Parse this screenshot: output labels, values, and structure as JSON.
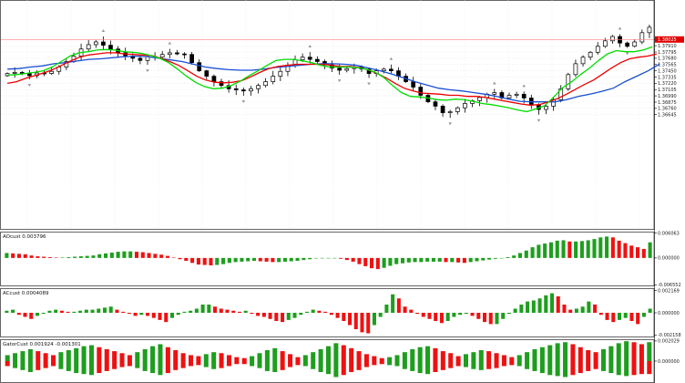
{
  "chart_data": [
    {
      "type": "candlestick",
      "panel": "main",
      "title": "",
      "xlabel": "",
      "ylabel": "",
      "ylim": [
        1.3453,
        1.3875
      ],
      "grid": true,
      "y_ticks": [
        "1.38025",
        "1.37910",
        "1.37795",
        "1.37680",
        "1.37565",
        "1.37450",
        "1.37335",
        "1.37220",
        "1.37105",
        "1.36990",
        "1.36875",
        "1.36760",
        "1.36645"
      ],
      "y_tick_values": [
        1.38025,
        1.3791,
        1.37795,
        1.3768,
        1.37565,
        1.3745,
        1.37335,
        1.3722,
        1.37105,
        1.3699,
        1.36875,
        1.3676,
        1.36645
      ],
      "current_price": "1.38025",
      "current_price_value": 1.38025,
      "colors": {
        "bull": "#ffffff",
        "bear": "#000000",
        "fast": "#00dd00",
        "mid": "#ee0000",
        "slow": "#1a4fd6",
        "fractal": "#9a9a9a",
        "price_line": "#ff8080"
      },
      "close": [
        1.374,
        1.3742,
        1.374,
        1.3736,
        1.3741,
        1.374,
        1.3744,
        1.3752,
        1.3762,
        1.3772,
        1.3785,
        1.3793,
        1.3798,
        1.3792,
        1.3785,
        1.3778,
        1.3772,
        1.3768,
        1.3764,
        1.3771,
        1.377,
        1.3775,
        1.3778,
        1.3776,
        1.3775,
        1.376,
        1.3745,
        1.3735,
        1.3725,
        1.3718,
        1.3712,
        1.371,
        1.3708,
        1.3712,
        1.3718,
        1.3725,
        1.3735,
        1.3744,
        1.3755,
        1.3765,
        1.377,
        1.3766,
        1.3762,
        1.3756,
        1.375,
        1.3746,
        1.3749,
        1.3752,
        1.3748,
        1.374,
        1.3745,
        1.3748,
        1.3745,
        1.3735,
        1.3725,
        1.3715,
        1.37,
        1.3688,
        1.368,
        1.3668,
        1.367,
        1.3677,
        1.3685,
        1.369,
        1.3696,
        1.3702,
        1.3705,
        1.3695,
        1.37,
        1.3702,
        1.3695,
        1.3682,
        1.3674,
        1.368,
        1.3692,
        1.3712,
        1.3738,
        1.3758,
        1.377,
        1.3779,
        1.379,
        1.38,
        1.3808,
        1.3796,
        1.379,
        1.3798,
        1.3815,
        1.3825
      ],
      "fast_ma": [
        1.3737,
        1.3738,
        1.374,
        1.3742,
        1.3745,
        1.3752,
        1.3762,
        1.3772,
        1.3778,
        1.378,
        1.3783,
        1.3784,
        1.3783,
        1.378,
        1.3779,
        1.3777,
        1.3773,
        1.3768,
        1.376,
        1.3748,
        1.3735,
        1.3724,
        1.3716,
        1.3712,
        1.3713,
        1.3718,
        1.3726,
        1.3736,
        1.3745,
        1.3755,
        1.3764,
        1.3766,
        1.3766,
        1.3763,
        1.376,
        1.3755,
        1.3752,
        1.3752,
        1.3752,
        1.3751,
        1.3748,
        1.3743,
        1.3733,
        1.3718,
        1.3705,
        1.3698,
        1.3697,
        1.3695,
        1.3692,
        1.3691,
        1.3693,
        1.3692,
        1.3689,
        1.3685,
        1.3683,
        1.368,
        1.3677,
        1.3673,
        1.367,
        1.3675,
        1.3681,
        1.3697,
        1.3714,
        1.3725,
        1.3738,
        1.375,
        1.3764,
        1.3776,
        1.3782,
        1.378,
        1.378,
        1.3783,
        1.3789
      ],
      "mid_ma": [
        1.3722,
        1.3725,
        1.3731,
        1.3736,
        1.3741,
        1.3747,
        1.3755,
        1.3763,
        1.377,
        1.3774,
        1.3776,
        1.3778,
        1.3778,
        1.3776,
        1.3775,
        1.3774,
        1.3773,
        1.3768,
        1.3762,
        1.3755,
        1.3745,
        1.3735,
        1.3728,
        1.3724,
        1.3723,
        1.3724,
        1.3727,
        1.3734,
        1.3742,
        1.3749,
        1.3753,
        1.3755,
        1.3757,
        1.3757,
        1.3757,
        1.3757,
        1.3755,
        1.3753,
        1.3753,
        1.3751,
        1.3747,
        1.374,
        1.3732,
        1.3722,
        1.3713,
        1.3708,
        1.3704,
        1.3703,
        1.3702,
        1.37,
        1.37,
        1.3698,
        1.3698,
        1.3696,
        1.3693,
        1.369,
        1.3687,
        1.3684,
        1.3682,
        1.3683,
        1.3688,
        1.3694,
        1.3702,
        1.3711,
        1.372,
        1.3728,
        1.3739,
        1.375,
        1.376,
        1.3767,
        1.377,
        1.3772,
        1.3776
      ],
      "slow_ma": [
        1.3748,
        1.3749,
        1.3752,
        1.3754,
        1.3758,
        1.376,
        1.3763,
        1.3766,
        1.3767,
        1.3769,
        1.3771,
        1.3772,
        1.3771,
        1.3768,
        1.3765,
        1.3762,
        1.3757,
        1.3752,
        1.3749,
        1.3747,
        1.3746,
        1.3746,
        1.3748,
        1.3751,
        1.3753,
        1.3755,
        1.3757,
        1.3758,
        1.3758,
        1.3757,
        1.3755,
        1.375,
        1.3745,
        1.3739,
        1.3732,
        1.3725,
        1.3719,
        1.3713,
        1.371,
        1.3708,
        1.3705,
        1.3702,
        1.3698,
        1.3693,
        1.3689,
        1.3688,
        1.3688,
        1.3688,
        1.3692,
        1.3698,
        1.3702,
        1.3707,
        1.3713,
        1.3725,
        1.3735,
        1.3745,
        1.3758
      ]
    },
    {
      "type": "histogram",
      "panel": "AOcust",
      "label": "AOcust 0.003796",
      "y_ticks": [
        "0.006063",
        "0.000000",
        "-0.006552"
      ],
      "y_tick_values": [
        0.006063,
        0,
        -0.006552
      ],
      "ylim": [
        -0.0069,
        0.0064
      ],
      "colors": {
        "up": "#1e9e1e",
        "down": "#ee1111"
      },
      "values": [
        0.0012,
        0.0011,
        0.001,
        0.0009,
        0.0006,
        0.0004,
        0.0003,
        0.0002,
        0.0001,
        0.0001,
        0.0002,
        0.0003,
        0.0004,
        0.0005,
        0.0006,
        0.0009,
        0.0011,
        0.0013,
        0.0015,
        0.0016,
        0.0016,
        0.0015,
        0.0014,
        0.0012,
        0.001,
        0.0008,
        0.0005,
        0.0001,
        -0.0003,
        -0.0007,
        -0.0012,
        -0.0016,
        -0.0017,
        -0.0018,
        -0.0017,
        -0.0015,
        -0.0012,
        -0.001,
        -0.0009,
        -0.0008,
        -0.0007,
        -0.0008,
        -0.0009,
        -0.001,
        -0.001,
        -0.0009,
        -0.0008,
        -0.0007,
        -0.0005,
        -0.0003,
        -0.0001,
        -0.0001,
        -0.0001,
        -0.0001,
        -0.0002,
        -0.0005,
        -0.0009,
        -0.0015,
        -0.002,
        -0.0025,
        -0.0027,
        -0.0024,
        -0.0019,
        -0.0015,
        -0.0013,
        -0.0011,
        -0.001,
        -0.001,
        -0.0009,
        -0.0009,
        -0.0009,
        -0.001,
        -0.001,
        -0.0011,
        -0.0012,
        -0.001,
        -0.0008,
        -0.0006,
        -0.0004,
        -0.0002,
        -0.0001,
        0.0002,
        0.0006,
        0.0012,
        0.0018,
        0.0026,
        0.0032,
        0.0035,
        0.0038,
        0.0042,
        0.0043,
        0.004,
        0.004,
        0.0041,
        0.0043,
        0.0046,
        0.005,
        0.0052,
        0.005,
        0.0042,
        0.0036,
        0.003,
        0.0026,
        0.0022,
        0.0038
      ]
    },
    {
      "type": "histogram",
      "panel": "ACcust",
      "label": "ACcust 0.0004089",
      "y_ticks": [
        "0.002169",
        "0.000000",
        "-0.002158"
      ],
      "y_tick_values": [
        0.002169,
        0,
        -0.002158
      ],
      "ylim": [
        -0.0024,
        0.0024
      ],
      "colors": {
        "up": "#1e9e1e",
        "down": "#ee1111"
      },
      "values": [
        0.0002,
        0.0003,
        -0.0002,
        -0.0004,
        -0.0006,
        -0.0003,
        -0.0001,
        0.0002,
        0.0003,
        0.0002,
        0.0001,
        0.0001,
        0.0002,
        0.0003,
        0.0003,
        0.0004,
        0.0005,
        0.0006,
        0.0003,
        0.0001,
        -0.0001,
        -0.0003,
        -0.0002,
        -0.0003,
        -0.0005,
        -0.0007,
        -0.0009,
        -0.0005,
        -0.0002,
        0.0001,
        0.0002,
        0.0004,
        0.0008,
        0.0008,
        0.0006,
        0.0004,
        0.0003,
        0.0002,
        0.0001,
        0.0002,
        -0.0001,
        -0.0003,
        -0.0004,
        -0.0006,
        -0.0008,
        -0.0009,
        -0.0007,
        -0.0005,
        -0.0002,
        0.0001,
        0.0003,
        0.0002,
        0.0001,
        -0.0002,
        -0.0005,
        -0.0008,
        -0.0012,
        -0.0016,
        -0.0019,
        -0.002,
        -0.0012,
        -0.0004,
        0.0008,
        0.0018,
        0.0014,
        0.0006,
        0.0003,
        -0.0001,
        -0.0004,
        -0.0006,
        -0.0008,
        -0.001,
        -0.0008,
        -0.0004,
        -0.0002,
        -0.0001,
        -0.0003,
        -0.0006,
        -0.0009,
        -0.0011,
        -0.0011,
        -0.0006,
        -0.0001,
        0.0004,
        0.0008,
        0.0011,
        0.0012,
        0.0014,
        0.0017,
        0.0019,
        0.0016,
        0.0008,
        0.0003,
        0.0004,
        0.0006,
        0.0011,
        0.0008,
        -0.0002,
        -0.0007,
        -0.0009,
        -0.0007,
        -0.0005,
        -0.0008,
        -0.0011,
        -0.0004,
        0.0004
      ]
    },
    {
      "type": "histogram",
      "panel": "GatorCust",
      "label": "GatorCust 0.001924 -0.001301",
      "y_ticks": [
        "0.002029",
        "0.000000"
      ],
      "y_tick_values": [
        0.002029,
        0
      ],
      "ylim": [
        -0.0022,
        0.0022
      ],
      "colors": {
        "up": "#1e9e1e",
        "down": "#ee1111"
      },
      "upper": [
        0.0006,
        0.0008,
        0.001,
        0.0012,
        0.001,
        0.0008,
        0.0006,
        0.0009,
        0.0011,
        0.0013,
        0.0015,
        0.0016,
        0.0014,
        0.0012,
        0.001,
        0.0008,
        0.0006,
        0.0009,
        0.0012,
        0.0015,
        0.0017,
        0.0014,
        0.0011,
        0.0008,
        0.0006,
        0.0005,
        0.0007,
        0.0009,
        0.0008,
        0.0006,
        0.0004,
        0.0003,
        0.0005,
        0.0008,
        0.0011,
        0.0013,
        0.001,
        0.0007,
        0.0004,
        0.0006,
        0.0009,
        0.0012,
        0.0015,
        0.0018,
        0.0016,
        0.0013,
        0.001,
        0.0007,
        0.0005,
        0.0003,
        0.0004,
        0.0006,
        0.0009,
        0.0012,
        0.0014,
        0.0015,
        0.0013,
        0.001,
        0.0008,
        0.0005,
        0.0007,
        0.0009,
        0.0011,
        0.001,
        0.0008,
        0.0006,
        0.0004,
        0.0006,
        0.0009,
        0.0012,
        0.0014,
        0.0016,
        0.0018,
        0.0019,
        0.0017,
        0.0014,
        0.0011,
        0.0009,
        0.0012,
        0.0015,
        0.0018,
        0.002,
        0.0019,
        0.0017,
        0.0019
      ],
      "lower": [
        -0.0005,
        -0.0007,
        -0.0009,
        -0.0011,
        -0.0009,
        -0.0007,
        -0.0005,
        -0.0008,
        -0.001,
        -0.0012,
        -0.0013,
        -0.0014,
        -0.0012,
        -0.001,
        -0.0008,
        -0.0006,
        -0.0005,
        -0.0007,
        -0.001,
        -0.0012,
        -0.0014,
        -0.0012,
        -0.0009,
        -0.0007,
        -0.0005,
        -0.0004,
        -0.0006,
        -0.0008,
        -0.0007,
        -0.0005,
        -0.0003,
        -0.0003,
        -0.0005,
        -0.0007,
        -0.001,
        -0.0011,
        -0.0009,
        -0.0006,
        -0.0004,
        -0.0005,
        -0.0008,
        -0.0011,
        -0.0013,
        -0.0016,
        -0.0014,
        -0.0011,
        -0.0009,
        -0.0006,
        -0.0004,
        -0.0003,
        -0.0004,
        -0.0005,
        -0.0008,
        -0.001,
        -0.0012,
        -0.0013,
        -0.0011,
        -0.0009,
        -0.0007,
        -0.0005,
        -0.0006,
        -0.0008,
        -0.0009,
        -0.0008,
        -0.0007,
        -0.0005,
        -0.0004,
        -0.0005,
        -0.0008,
        -0.001,
        -0.0012,
        -0.0014,
        -0.0015,
        -0.0016,
        -0.0014,
        -0.0012,
        -0.001,
        -0.0008,
        -0.001,
        -0.0012,
        -0.0014,
        -0.0015,
        -0.0014,
        -0.0013,
        -0.0013
      ]
    }
  ]
}
